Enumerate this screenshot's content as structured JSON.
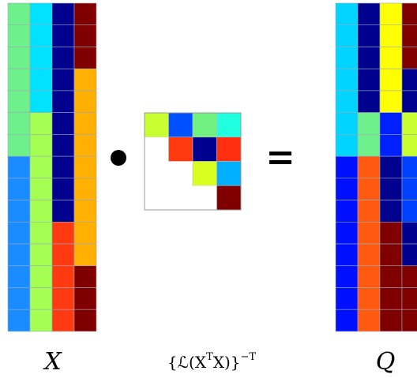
{
  "matrices": [
    {
      "label": "X",
      "cells": [
        [
          "#6ef08a",
          "#00e2ff",
          "#00008e",
          "#800000"
        ],
        [
          "#6ef08a",
          "#00e2ff",
          "#00008e",
          "#800000"
        ],
        [
          "#6ef08a",
          "#00e2ff",
          "#00008e",
          "#800000"
        ],
        [
          "#6ef08a",
          "#00e2ff",
          "#00008e",
          "#ffb000"
        ],
        [
          "#6ef08a",
          "#00e2ff",
          "#00008e",
          "#ffb000"
        ],
        [
          "#6ef08a",
          "#a4ff52",
          "#00008e",
          "#ffb000"
        ],
        [
          "#6ef08a",
          "#a4ff52",
          "#00008e",
          "#ffb000"
        ],
        [
          "#1a8cff",
          "#a4ff52",
          "#00008e",
          "#ffb000"
        ],
        [
          "#1a8cff",
          "#a4ff52",
          "#00008e",
          "#ffb000"
        ],
        [
          "#1a8cff",
          "#a4ff52",
          "#00008e",
          "#ffb000"
        ],
        [
          "#1a8cff",
          "#a4ff52",
          "#ff3a10",
          "#ffb000"
        ],
        [
          "#1a8cff",
          "#a4ff52",
          "#ff3a10",
          "#ffb000"
        ],
        [
          "#1a8cff",
          "#a4ff52",
          "#ff3a10",
          "#800000"
        ],
        [
          "#1a8cff",
          "#a4ff52",
          "#ff3a10",
          "#800000"
        ],
        [
          "#1a8cff",
          "#a4ff52",
          "#ff3a10",
          "#800000"
        ]
      ]
    },
    {
      "label": [
        "{ℒ(X",
        "T",
        "X)}",
        "−T"
      ],
      "cells": [
        [
          "#c8ff30",
          "#0050ff",
          "#70f080",
          "#20ffe0"
        ],
        [
          "#ffffff",
          "#ff3a10",
          "#00008e",
          "#ff3010"
        ],
        [
          "#ffffff",
          "#ffffff",
          "#d8ff20",
          "#00b0ff"
        ],
        [
          "#ffffff",
          "#ffffff",
          "#ffffff",
          "#800000"
        ]
      ]
    },
    {
      "label": "Q",
      "cells": [
        [
          "#00d4ff",
          "#00008e",
          "#ffff00",
          "#800000"
        ],
        [
          "#00d4ff",
          "#00008e",
          "#ffff00",
          "#800000"
        ],
        [
          "#00d4ff",
          "#00008e",
          "#ffff00",
          "#800000"
        ],
        [
          "#00d4ff",
          "#00008e",
          "#ffff00",
          "#00008e"
        ],
        [
          "#00d4ff",
          "#00008e",
          "#ffff00",
          "#00008e"
        ],
        [
          "#00d4ff",
          "#6ef08a",
          "#0020ff",
          "#c8ff30"
        ],
        [
          "#00d4ff",
          "#6ef08a",
          "#0020ff",
          "#c8ff30"
        ],
        [
          "#0010ff",
          "#ff5a10",
          "#00008e",
          "#0040ff"
        ],
        [
          "#0010ff",
          "#ff5a10",
          "#00008e",
          "#0040ff"
        ],
        [
          "#0010ff",
          "#ff5a10",
          "#00008e",
          "#0040ff"
        ],
        [
          "#0010ff",
          "#ff5a10",
          "#800000",
          "#00008e"
        ],
        [
          "#0010ff",
          "#ff5a10",
          "#800000",
          "#00008e"
        ],
        [
          "#0010ff",
          "#ff5a10",
          "#800000",
          "#800000"
        ],
        [
          "#0010ff",
          "#ff5a10",
          "#800000",
          "#800000"
        ],
        [
          "#0010ff",
          "#ff5a10",
          "#800000",
          "#800000"
        ]
      ]
    }
  ]
}
